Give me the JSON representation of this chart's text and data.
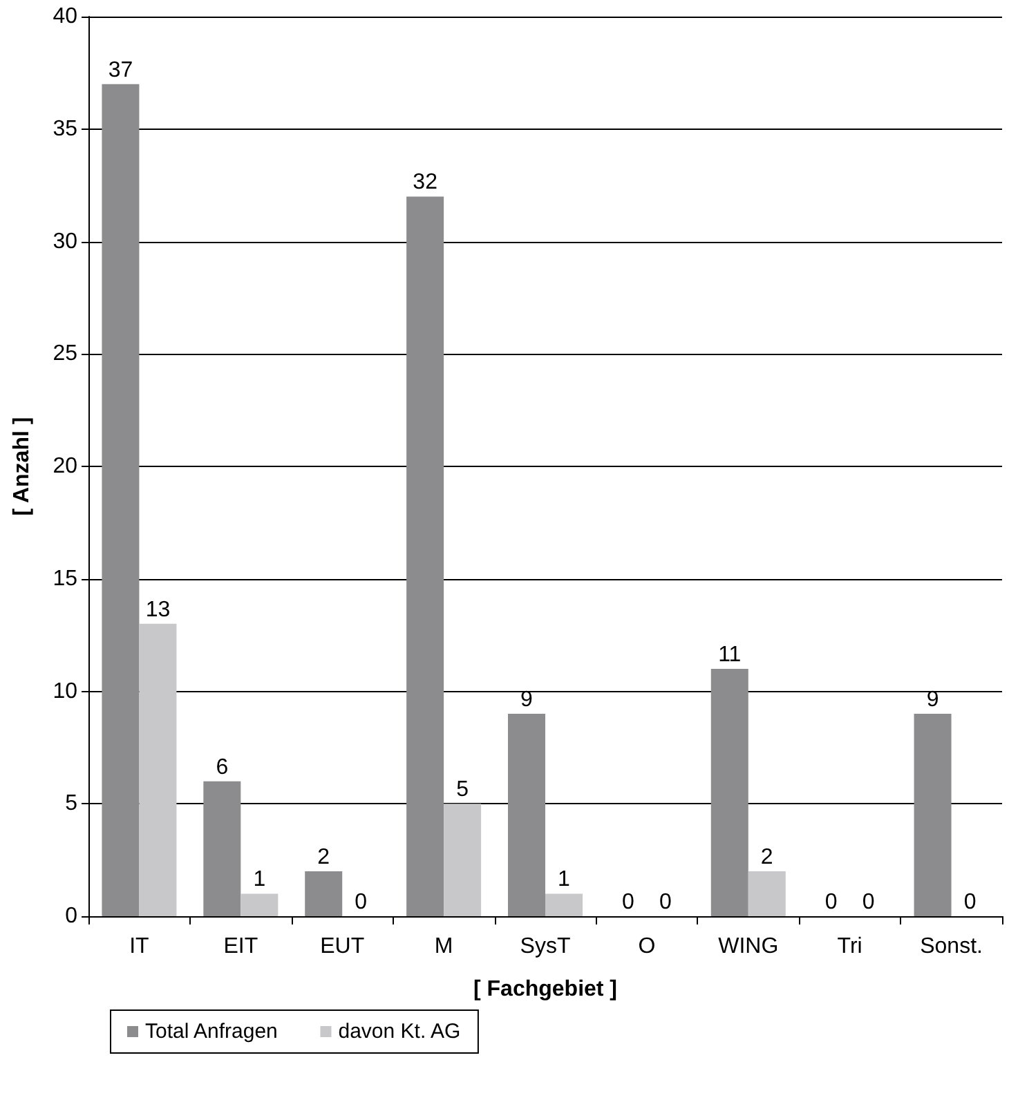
{
  "chart_data": {
    "type": "bar",
    "xlabel": "[ Fachgebiet ]",
    "ylabel": "[ Anzahl ]",
    "categories": [
      "IT",
      "EIT",
      "EUT",
      "M",
      "SysT",
      "O",
      "WING",
      "Tri",
      "Sonst."
    ],
    "series": [
      {
        "name": "Total Anfragen",
        "color": "#8c8c8f",
        "values": [
          37,
          6,
          2,
          32,
          9,
          0,
          11,
          0,
          9
        ]
      },
      {
        "name": "davon Kt. AG",
        "color": "#c8c8ca",
        "values": [
          13,
          1,
          0,
          5,
          1,
          0,
          2,
          0,
          0
        ]
      }
    ],
    "ylim": [
      0,
      40
    ],
    "yticks": [
      0,
      5,
      10,
      15,
      20,
      25,
      30,
      35,
      40
    ],
    "grid": "y",
    "legend": "bottom left",
    "data_labels": true
  }
}
